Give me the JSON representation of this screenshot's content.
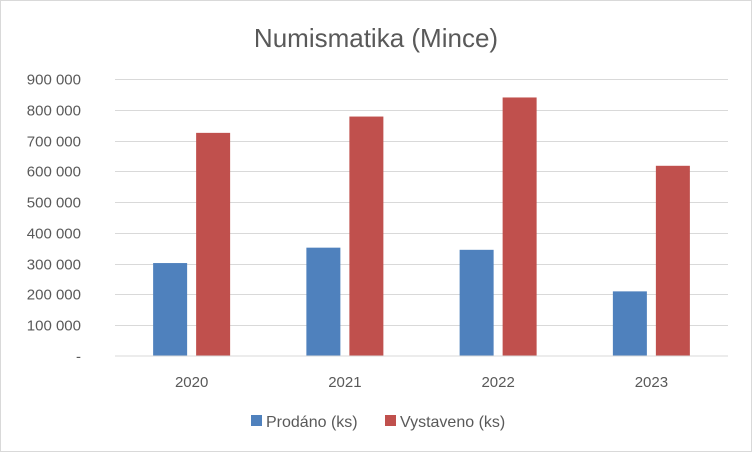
{
  "chart_data": {
    "type": "bar",
    "title": "Numismatika (Mince)",
    "categories": [
      "2020",
      "2021",
      "2022",
      "2023"
    ],
    "series": [
      {
        "name": "Prodáno (ks)",
        "color": "#4f81bd",
        "values": [
          302000,
          352000,
          345000,
          210000
        ]
      },
      {
        "name": "Vystaveno (ks)",
        "color": "#c0504d",
        "values": [
          725000,
          778000,
          840000,
          618000
        ]
      }
    ],
    "ylim": [
      0,
      900000
    ],
    "y_ticks": [
      0,
      100000,
      200000,
      300000,
      400000,
      500000,
      600000,
      700000,
      800000,
      900000
    ],
    "y_tick_labels": [
      "-",
      "100 000",
      "200 000",
      "300 000",
      "400 000",
      "500 000",
      "600 000",
      "700 000",
      "800 000",
      "900 000"
    ],
    "grid": true,
    "legend_position": "bottom",
    "xlabel": "",
    "ylabel": ""
  }
}
